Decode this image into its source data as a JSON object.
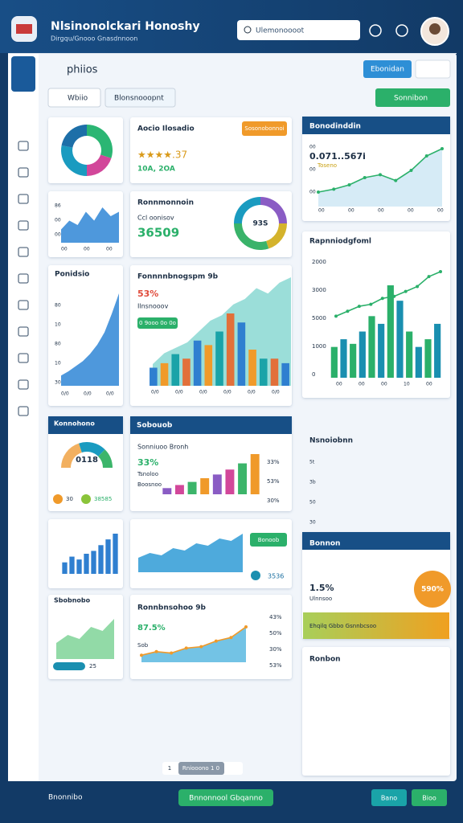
{
  "header": {
    "title": "Nlsinonolckari Honoshy",
    "subtitle": "Dirgqu/Gnooo Gnasdnnoon",
    "search": "Ulemonoooot"
  },
  "toolbar": {
    "title": "phiios",
    "primary": "Ebonidan",
    "tabs": [
      "Wbiio",
      "Blonsnooopnt"
    ],
    "action": "Sonnibon"
  },
  "cards": {
    "donut1": {
      "values": [
        30,
        20,
        28,
        22
      ],
      "colors": [
        "#2bb673",
        "#d2479a",
        "#1a9bc0",
        "#1d6fa8"
      ]
    },
    "area1": {
      "values": [
        3,
        5,
        4,
        7,
        5,
        8,
        6,
        7
      ],
      "color": "#2f86d6",
      "ylabels": [
        "86",
        "00",
        "00"
      ],
      "xlabels": [
        "00",
        "00",
        "00"
      ]
    },
    "rising": {
      "title": "Ponidsio",
      "values": [
        1,
        1.4,
        1.9,
        2.4,
        3.1,
        4,
        5.2,
        7,
        9
      ],
      "color": "#2f86d6",
      "ylabels": [
        "80",
        "10",
        "80",
        "10",
        "30"
      ],
      "xlabels": [
        "0/0",
        "0/0",
        "0/0"
      ]
    },
    "rating": {
      "title": "Aocio Ilosadio",
      "badge": "Sosonobonnoi",
      "stars": "★★★★.37",
      "note": "10A, 2OA"
    },
    "ring": {
      "title": "Ronnmonnoin",
      "label": "Ccl oonisov",
      "value": "36509",
      "center": "93S",
      "values": [
        25,
        20,
        30,
        25
      ],
      "colors": [
        "#8a5cc4",
        "#d4b32c",
        "#39b36a",
        "#1a9bc0"
      ]
    },
    "combo": {
      "title": "Fonnnnbnogspm 9b",
      "pct": "53%",
      "label": "Ilnsnooov",
      "pill": "0 9ooo 0o 0o",
      "bars": [
        2,
        2.5,
        3.5,
        3,
        5,
        4.5,
        6,
        8,
        7,
        4,
        3,
        3,
        2.5
      ],
      "area": [
        2,
        3,
        3.5,
        4,
        5,
        6,
        6.5,
        7.5,
        8,
        9,
        8.5,
        9.5,
        10
      ],
      "colors": [
        "#2f7fd0",
        "#f09a2a",
        "#1aa3a8",
        "#e2703a"
      ],
      "xlabels": [
        "0/0",
        "0/0",
        "0/0",
        "0/0",
        "0/0",
        "0/0"
      ]
    },
    "trend": {
      "title": "Bonodinddin",
      "value": "0.071..567i",
      "label": "Toseno",
      "values": [
        1,
        1.2,
        1.5,
        2,
        2.2,
        1.8,
        2.5,
        3.5,
        4
      ],
      "ylabels": [
        "00",
        "00",
        "00"
      ],
      "xlabels": [
        "00",
        "00",
        "00",
        "00",
        "00"
      ]
    },
    "report": {
      "title": "Rapnniodgfoml",
      "bars": [
        2,
        2.5,
        2.2,
        3,
        4,
        3.5,
        6,
        5,
        3,
        2,
        2.5,
        3.5
      ],
      "line": [
        2,
        2.5,
        3,
        3.2,
        3.8,
        4,
        4.5,
        5,
        6,
        6.5
      ],
      "ylabels": [
        "2000",
        "3000",
        "5000",
        "1000",
        "0"
      ],
      "xlabels": [
        "00",
        "00",
        "00",
        "10",
        "00"
      ]
    },
    "half": {
      "title": "Konnohono",
      "center": "0118",
      "a": "30",
      "b": "38585",
      "values": [
        40,
        35,
        25
      ],
      "colors": [
        "#f2b060",
        "#1a9bc0",
        "#3cb56a"
      ]
    },
    "steps": {
      "title": "Sobouob",
      "name": "Sonniuoo Bronh",
      "pct": "33%",
      "l1": "Tsnoloo",
      "l2": "Boosnoo",
      "values": [
        1,
        1.5,
        2,
        2.6,
        3.2,
        4,
        5,
        6.5
      ],
      "colors": [
        "#8a5cc4",
        "#d2479a",
        "#3cb56a",
        "#f09a2a"
      ],
      "rlabels": [
        "33%",
        "53%",
        "30%"
      ]
    },
    "note": {
      "title": "Nsnoiobnn",
      "ylabels": [
        "5t",
        "3b",
        "50",
        "30"
      ]
    },
    "bars2": {
      "values": [
        2,
        3,
        2.5,
        3.5,
        4,
        5,
        6,
        7
      ],
      "color": "#2f7fd0"
    },
    "area2": {
      "values": [
        3,
        4,
        3.5,
        5,
        4.5,
        6,
        5.5,
        7,
        6.5,
        8
      ],
      "color": "#2f9bd6",
      "pill": "Bonoob",
      "value": "3536"
    },
    "bonnon": {
      "title": "Bonnon",
      "pct": "1.5%",
      "label": "Ulnnsoo",
      "circle": "590%",
      "bar": "Ehqilq Gbbo Gsnnbcsoo"
    },
    "green": {
      "title": "Sbobnobo",
      "values": [
        2,
        3,
        2.5,
        4,
        3.5,
        5
      ],
      "label": "25"
    },
    "line2": {
      "title": "Ronnbnsohoo 9b",
      "pct": "87.5%",
      "label": "Sob",
      "values": [
        1,
        1.5,
        1.3,
        2,
        2.2,
        3,
        3.5,
        5
      ],
      "rlabels": [
        "43%",
        "50%",
        "30%",
        "53%"
      ]
    },
    "ronbon": {
      "title": "Ronbon"
    }
  },
  "pagination": {
    "first": "1",
    "current": "Rniooono 1 0"
  },
  "footer": {
    "left": "Bnonnibo",
    "center": "Bnnonnool Gbqanno",
    "b1": "Bano",
    "b2": "Bioo"
  }
}
